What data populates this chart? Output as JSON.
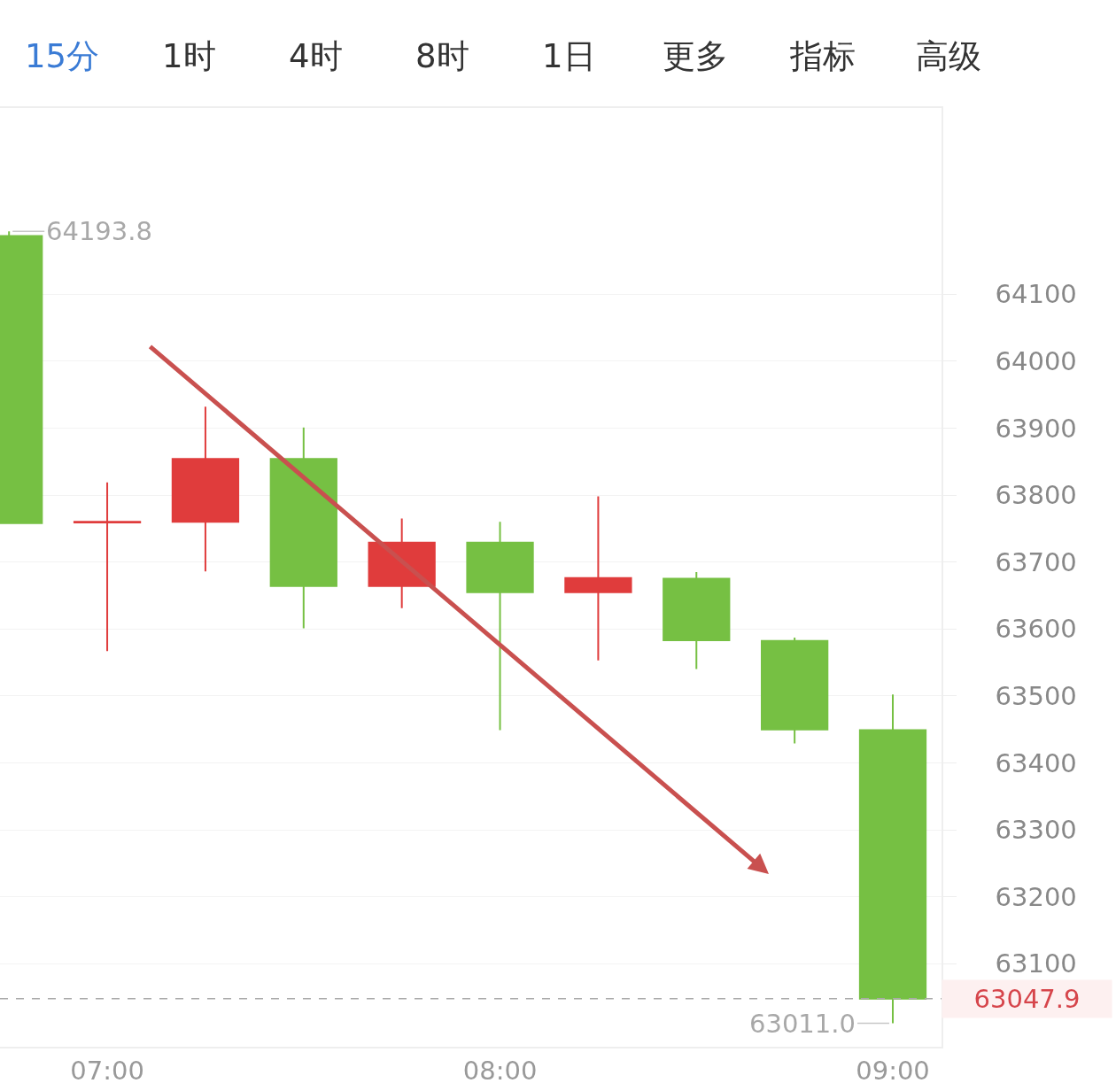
{
  "chart_data": {
    "type": "candlestick",
    "annotations": [
      "15分",
      "1时",
      "4时",
      "8时",
      "1日",
      "更多",
      "指标",
      "高级",
      {
        "text": "64193.8",
        "x": 6.75,
        "y": 64193.8
      },
      {
        "text": "63011.0",
        "x": 9,
        "y": 63011.0
      }
    ],
    "x": [
      6.75,
      7,
      7.25,
      7.5,
      7.75,
      8,
      8.25,
      8.5,
      8.75,
      9
    ],
    "ohlc": [
      [
        64187,
        64193.8,
        63758,
        63758
      ],
      [
        63759,
        63819,
        63567,
        63760
      ],
      [
        63760,
        63932,
        63686,
        63854
      ],
      [
        63854,
        63901,
        63601,
        63664
      ],
      [
        63664,
        63765,
        63631,
        63729
      ],
      [
        63729,
        63760,
        63449,
        63655
      ],
      [
        63655,
        63798,
        63553,
        63676
      ],
      [
        63675,
        63685,
        63540,
        63583
      ],
      [
        63582,
        63587,
        63429,
        63450
      ],
      [
        63449,
        63502,
        63011.0,
        63047.9
      ]
    ],
    "colors": [
      "#76c043",
      "#e03c3c",
      "#e03c3c",
      "#76c043",
      "#e03c3c",
      "#76c043",
      "#e03c3c",
      "#76c043",
      "#76c043",
      "#76c043"
    ],
    "xlim": [
      6.727,
      9.124
    ],
    "xticks": [
      {
        "value": 7,
        "label": "07:00"
      },
      {
        "value": 8,
        "label": "08:00"
      },
      {
        "value": 9,
        "label": "09:00"
      }
    ],
    "ylim": [
      62976,
      64378
    ],
    "yticks": [
      63100,
      63200,
      63300,
      63400,
      63500,
      63600,
      63700,
      63800,
      63900,
      64000,
      64100
    ],
    "ref_lines": [
      {
        "axis": "y",
        "value": 63047.9,
        "label": "63047.9",
        "color": "#aaaaaa",
        "line_style": "dashed"
      }
    ],
    "grid": "y"
  }
}
